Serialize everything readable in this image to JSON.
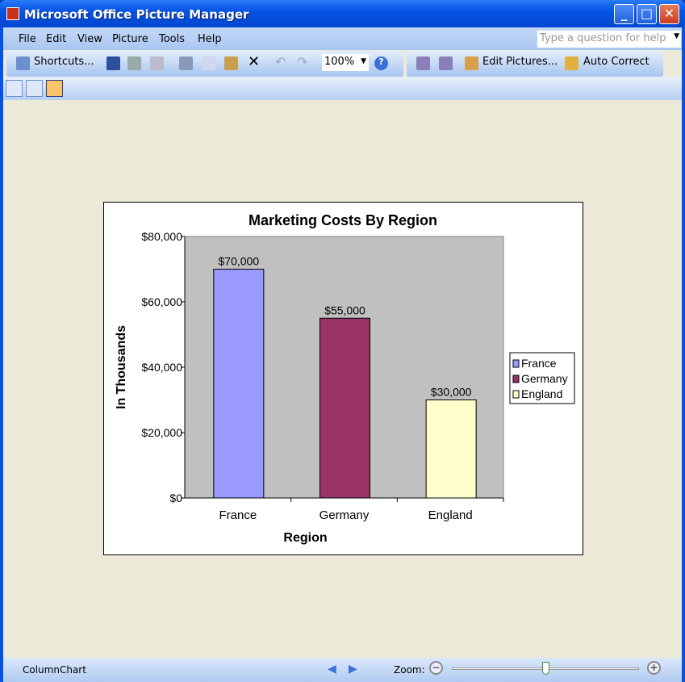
{
  "window": {
    "title": "Microsoft Office Picture Manager"
  },
  "menu": [
    "File",
    "Edit",
    "View",
    "Picture",
    "Tools",
    "Help"
  ],
  "help_placeholder": "Type a question for help",
  "toolbar": {
    "shortcuts": "Shortcuts...",
    "zoom": "100%",
    "edit_pictures": "Edit Pictures...",
    "auto_correct": "Auto Correct"
  },
  "status": {
    "file_name": "ColumnChart",
    "zoom_label": "Zoom:",
    "zoom_slider_fraction": 0.5
  },
  "chart_data": {
    "type": "bar",
    "title": "Marketing Costs By Region",
    "xlabel": "Region",
    "ylabel": "In Thousands",
    "categories": [
      "France",
      "Germany",
      "England"
    ],
    "values": [
      70000,
      55000,
      30000
    ],
    "data_labels": [
      "$70,000",
      "$55,000",
      "$30,000"
    ],
    "colors": [
      "#9999FF",
      "#993366",
      "#FFFFCC"
    ],
    "ylim": [
      0,
      80000
    ],
    "yticks": [
      0,
      20000,
      40000,
      60000,
      80000
    ],
    "ytick_labels": [
      "$0",
      "$20,000",
      "$40,000",
      "$60,000",
      "$80,000"
    ],
    "plot_background": "#C0C0C0",
    "grid": false,
    "legend": {
      "position": "right",
      "entries": [
        "France",
        "Germany",
        "England"
      ]
    }
  }
}
